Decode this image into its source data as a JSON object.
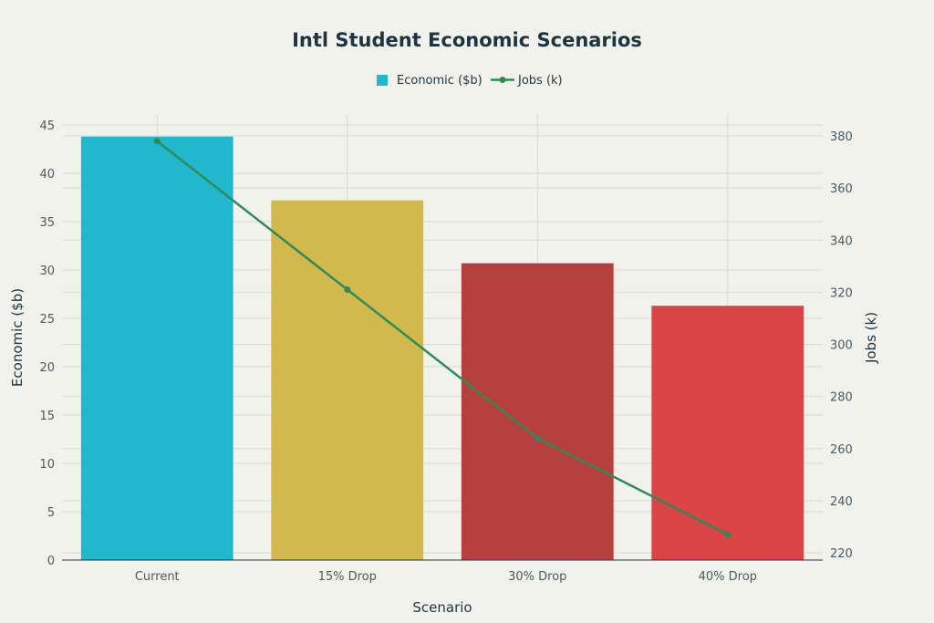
{
  "chart_data": {
    "type": "bar",
    "title": "Intl Student Economic Scenarios",
    "xlabel": "Scenario",
    "ylabel": "Economic ($b)",
    "y2label": "Jobs (k)",
    "categories": [
      "Current",
      "15% Drop",
      "30% Drop",
      "40% Drop"
    ],
    "ylim": [
      0,
      45
    ],
    "y2lim": [
      220,
      380
    ],
    "yticks": [
      "0",
      "5",
      "10",
      "15",
      "20",
      "25",
      "30",
      "35",
      "40",
      "45"
    ],
    "y2ticks": [
      "220",
      "240",
      "260",
      "280",
      "300",
      "320",
      "340",
      "360",
      "380"
    ],
    "grid": true,
    "legend_position": "top-center",
    "series": [
      {
        "name": "Economic ($b)",
        "type": "bar",
        "axis": "left",
        "values": [
          43.8,
          37.2,
          30.7,
          26.3
        ],
        "colors": [
          "#21b8cd",
          "#d2b94e",
          "#b5403d",
          "#dc4545"
        ]
      },
      {
        "name": "Jobs (k)",
        "type": "line",
        "axis": "right",
        "values": [
          378,
          321,
          264,
          227
        ],
        "color": "#2e8b57"
      }
    ]
  }
}
